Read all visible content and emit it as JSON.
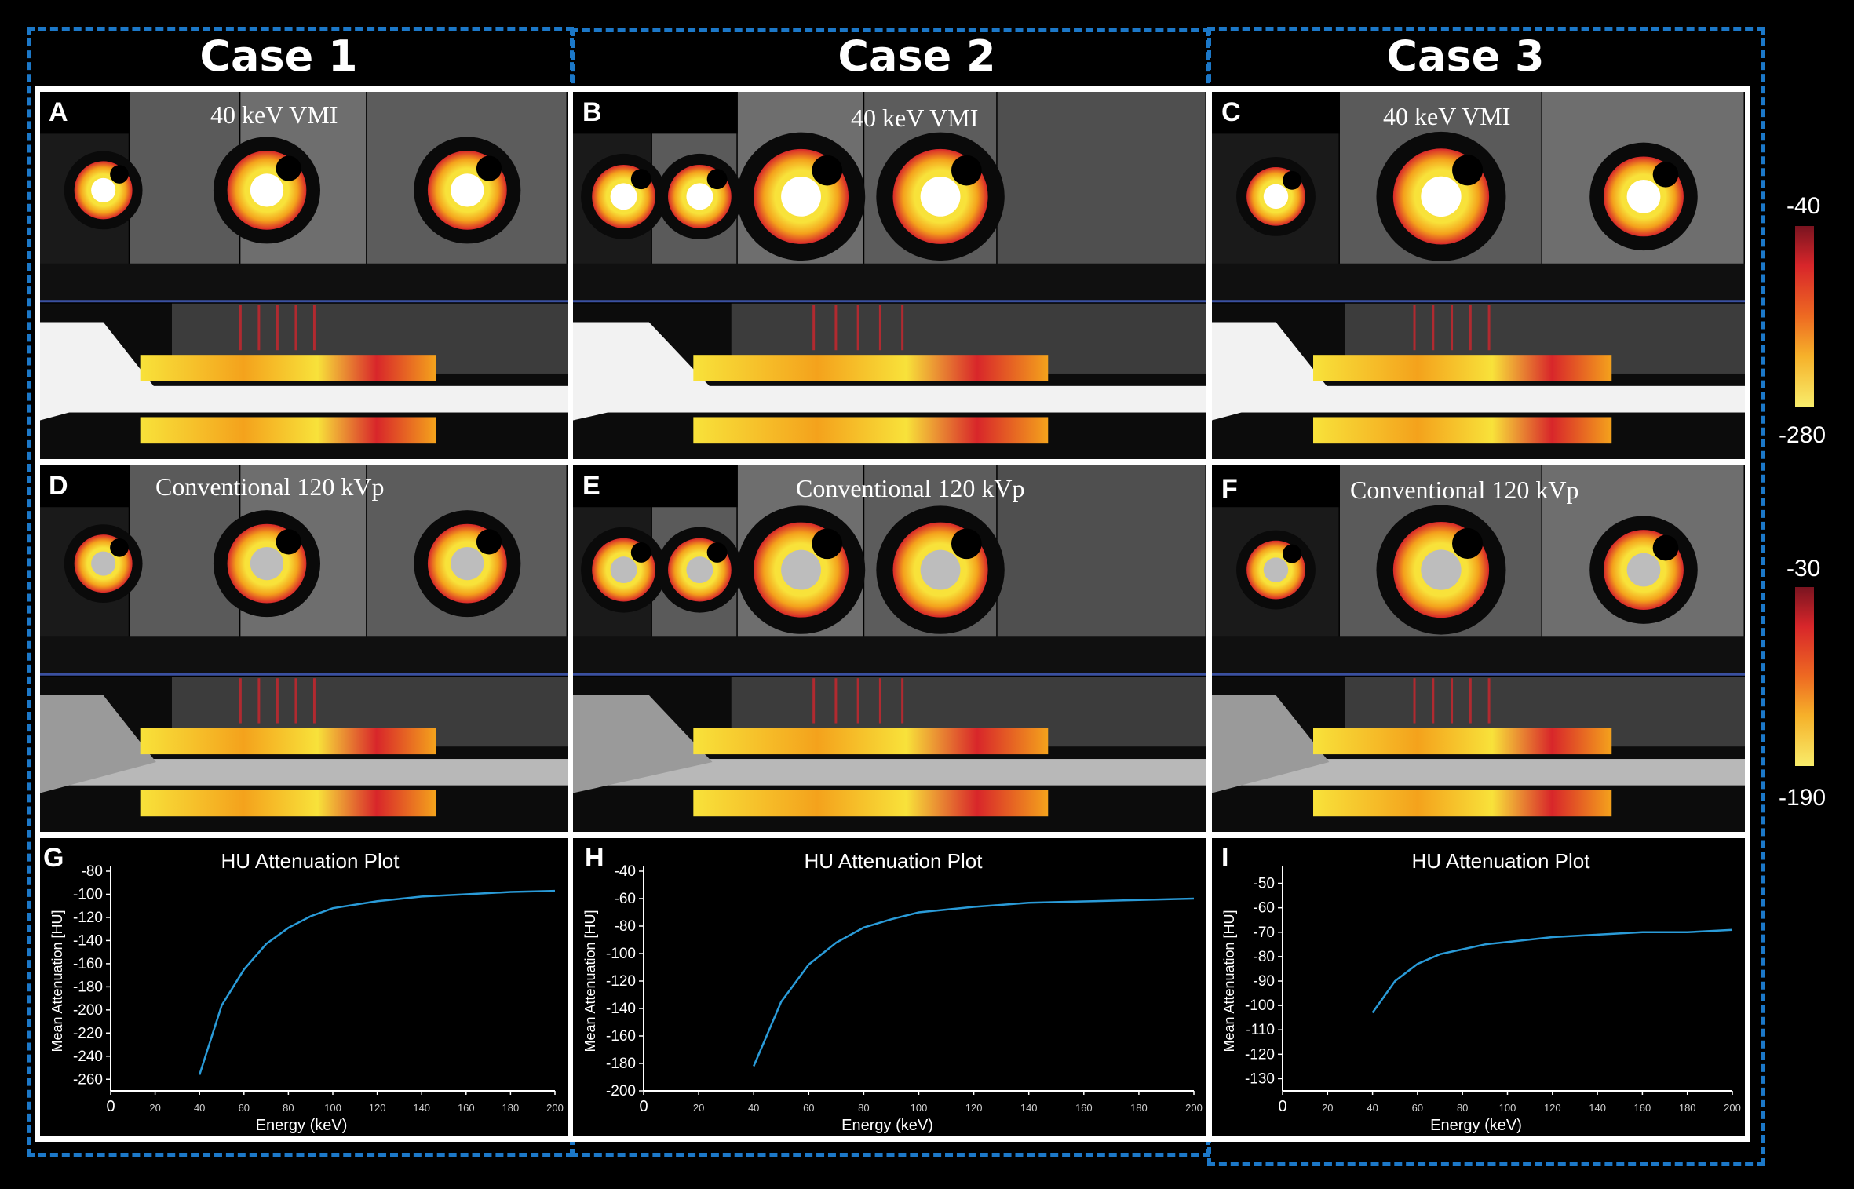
{
  "cases": [
    {
      "title": "Case 1",
      "vmi_letter": "A",
      "conv_letter": "D",
      "plot_letter": "G"
    },
    {
      "title": "Case 2",
      "vmi_letter": "B",
      "conv_letter": "E",
      "plot_letter": "H"
    },
    {
      "title": "Case 3",
      "vmi_letter": "C",
      "conv_letter": "F",
      "plot_letter": "I"
    }
  ],
  "labels": {
    "vmi": "40 keV VMI",
    "conventional": "Conventional 120 kVp"
  },
  "colorbars": [
    {
      "top": "-40",
      "bottom": "-280"
    },
    {
      "top": "-30",
      "bottom": "-190"
    }
  ],
  "colors": {
    "dash": "#1c78c8",
    "curve": "#2a9bd8",
    "fat_hot": "#d8262a",
    "fat_warm": "#f4a21c",
    "fat_cool": "#f8e23a"
  },
  "chart_data": [
    {
      "type": "line",
      "title": "HU Attenuation Plot",
      "xlabel": "Energy (keV)",
      "ylabel": "Mean Attenuation [HU]",
      "xlim": [
        0,
        200
      ],
      "ylim": [
        -270,
        -80
      ],
      "xticks": [
        0,
        20,
        40,
        60,
        80,
        100,
        120,
        140,
        160,
        180,
        200
      ],
      "yticks": [
        -80,
        -100,
        -120,
        -140,
        -160,
        -180,
        -200,
        -220,
        -240,
        -260
      ],
      "series": [
        {
          "x": [
            40,
            50,
            60,
            70,
            80,
            90,
            100,
            120,
            140,
            160,
            180,
            200
          ],
          "y": [
            -256,
            -196,
            -165,
            -143,
            -129,
            -119,
            -112,
            -106,
            -102,
            -100,
            -98,
            -97
          ]
        }
      ]
    },
    {
      "type": "line",
      "title": "HU Attenuation Plot",
      "xlabel": "Energy (keV)",
      "ylabel": "Mean Attenuation [HU]",
      "xlim": [
        0,
        200
      ],
      "ylim": [
        -200,
        -40
      ],
      "xticks": [
        0,
        20,
        40,
        60,
        80,
        100,
        120,
        140,
        160,
        180,
        200
      ],
      "yticks": [
        -40,
        -60,
        -80,
        -100,
        -120,
        -140,
        -160,
        -180,
        -200
      ],
      "series": [
        {
          "x": [
            40,
            50,
            60,
            70,
            80,
            90,
            100,
            120,
            140,
            160,
            180,
            200
          ],
          "y": [
            -182,
            -135,
            -108,
            -92,
            -81,
            -75,
            -70,
            -66,
            -63,
            -62,
            -61,
            -60
          ]
        }
      ]
    },
    {
      "type": "line",
      "title": "HU Attenuation Plot",
      "xlabel": "Energy (keV)",
      "ylabel": "Mean Attenuation [HU]",
      "xlim": [
        0,
        200
      ],
      "ylim": [
        -135,
        -45
      ],
      "xticks": [
        0,
        20,
        40,
        60,
        80,
        100,
        120,
        140,
        160,
        180,
        200
      ],
      "yticks": [
        -50,
        -60,
        -70,
        -80,
        -90,
        -100,
        -110,
        -120,
        -130
      ],
      "series": [
        {
          "x": [
            40,
            50,
            60,
            70,
            80,
            90,
            100,
            120,
            140,
            160,
            180,
            200
          ],
          "y": [
            -103,
            -90,
            -83,
            -79,
            -77,
            -75,
            -74,
            -72,
            -71,
            -70,
            -70,
            -69
          ]
        }
      ]
    }
  ]
}
